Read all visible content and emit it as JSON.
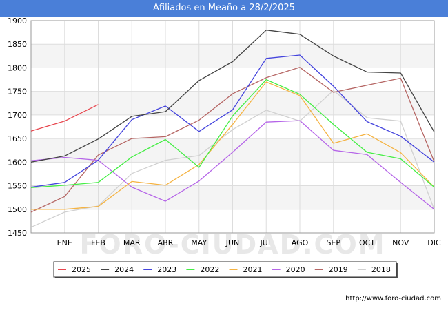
{
  "title": "Afiliados en Meaño a 28/2/2025",
  "watermark": "FORO-CIUDAD.COM",
  "footer_url": "http://www.foro-ciudad.com",
  "chart_data": {
    "type": "line",
    "categories": [
      "",
      "ENE",
      "FEB",
      "MAR",
      "ABR",
      "MAY",
      "JUN",
      "JUL",
      "AGO",
      "SEP",
      "OCT",
      "NOV",
      "DIC"
    ],
    "ylim": [
      1450,
      1900
    ],
    "yticks": [
      1450,
      1500,
      1550,
      1600,
      1650,
      1700,
      1750,
      1800,
      1850,
      1900
    ],
    "grid": true,
    "legend_position": "bottom",
    "series": [
      {
        "name": "2025",
        "color": "#e8474f",
        "values": [
          1666,
          1687,
          1722,
          null,
          null,
          null,
          null,
          null,
          null,
          null,
          null,
          null,
          null
        ]
      },
      {
        "name": "2024",
        "color": "#444444",
        "values": [
          1600,
          1613,
          1649,
          1697,
          1707,
          1773,
          1813,
          1880,
          1871,
          1825,
          1791,
          1789,
          1664
        ]
      },
      {
        "name": "2023",
        "color": "#4444dd",
        "values": [
          1547,
          1557,
          1604,
          1690,
          1719,
          1665,
          1711,
          1820,
          1827,
          1761,
          1686,
          1655,
          1600
        ]
      },
      {
        "name": "2022",
        "color": "#44ee44",
        "values": [
          1546,
          1551,
          1557,
          1611,
          1648,
          1589,
          1698,
          1775,
          1744,
          1680,
          1621,
          1607,
          1547
        ]
      },
      {
        "name": "2021",
        "color": "#f5b342",
        "values": [
          1500,
          1500,
          1506,
          1559,
          1551,
          1595,
          1680,
          1770,
          1741,
          1640,
          1660,
          1620,
          1547
        ]
      },
      {
        "name": "2020",
        "color": "#b565e8",
        "values": [
          1603,
          1610,
          1604,
          1547,
          1517,
          1560,
          1621,
          1685,
          1688,
          1625,
          1616,
          1557,
          1500
        ]
      },
      {
        "name": "2019",
        "color": "#b56563",
        "values": [
          1494,
          1527,
          1615,
          1650,
          1654,
          1689,
          1745,
          1779,
          1801,
          1748,
          1763,
          1778,
          1601
        ]
      },
      {
        "name": "2018",
        "color": "#d0d0d0",
        "values": [
          1462,
          1494,
          1507,
          1576,
          1604,
          1614,
          1669,
          1710,
          1687,
          1752,
          1694,
          1687,
          1500
        ]
      }
    ]
  }
}
